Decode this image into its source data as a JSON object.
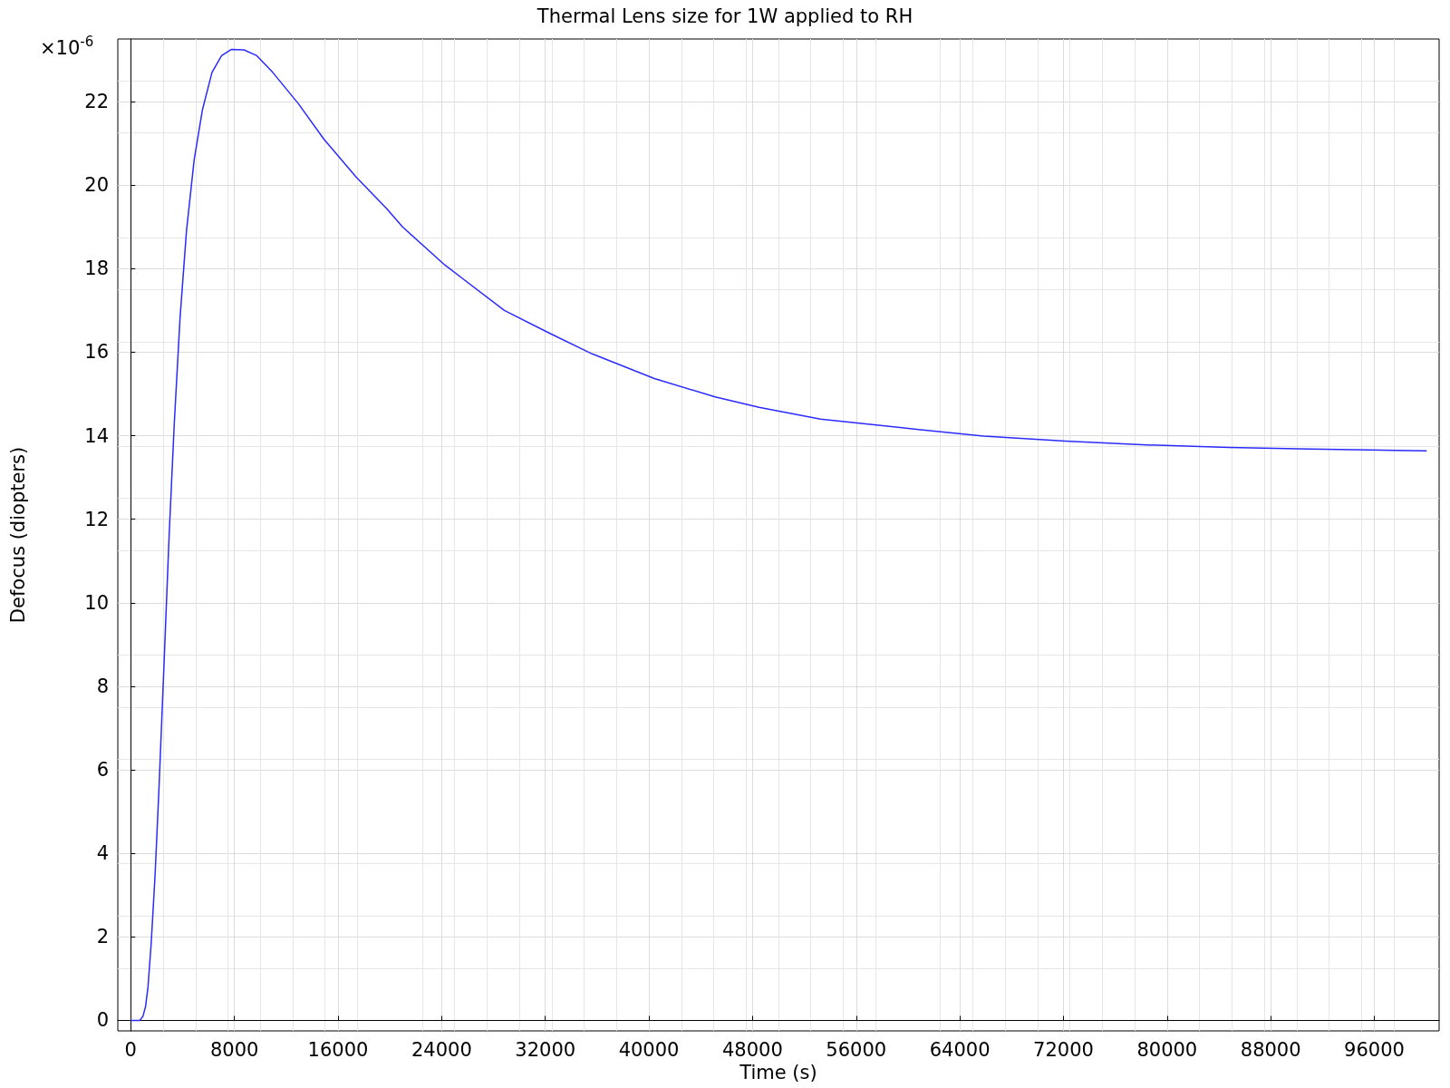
{
  "chart_data": {
    "type": "line",
    "title": "Thermal Lens size for 1W applied to RH",
    "xlabel": "Time (s)",
    "ylabel": "Defocus (diopters)",
    "annotations": [
      "×10$^{-6}$"
    ],
    "x": [
      0,
      690,
      940,
      1140,
      1330,
      1580,
      1880,
      2170,
      2570,
      2960,
      3360,
      3800,
      4300,
      4890,
      5530,
      6270,
      7010,
      7750,
      8740,
      9730,
      10960,
      12940,
      14910,
      17380,
      19750,
      20980,
      24240,
      28840,
      32290,
      35620,
      40420,
      45110,
      48500,
      53240,
      59550,
      65840,
      72140,
      78440,
      84740,
      91030,
      100000
    ],
    "series": [
      {
        "color": "#2b2bff",
        "values": [
          0,
          0,
          0.1,
          0.33,
          0.8,
          1.86,
          3.5,
          5.5,
          8.55,
          11.6,
          14.3,
          16.8,
          18.9,
          20.6,
          21.8,
          22.7,
          23.1,
          23.25,
          23.24,
          23.1,
          22.7,
          21.95,
          21.1,
          20.2,
          19.44,
          19.0,
          18.09,
          17.0,
          16.46,
          15.96,
          15.37,
          14.93,
          14.68,
          14.4,
          14.19,
          13.99,
          13.87,
          13.78,
          13.72,
          13.68,
          13.64
        ]
      }
    ],
    "xlim": [
      -1000,
      101000
    ],
    "xticks": [
      0,
      8000,
      16000,
      24000,
      32000,
      40000,
      48000,
      56000,
      64000,
      72000,
      80000,
      88000,
      96000
    ],
    "ylim": [
      -0.25,
      23.5
    ],
    "yticks": [
      0,
      2,
      4,
      6,
      8,
      10,
      12,
      14,
      16,
      18,
      20,
      22
    ],
    "grid": true,
    "marker": "none",
    "line_style": "solid"
  }
}
